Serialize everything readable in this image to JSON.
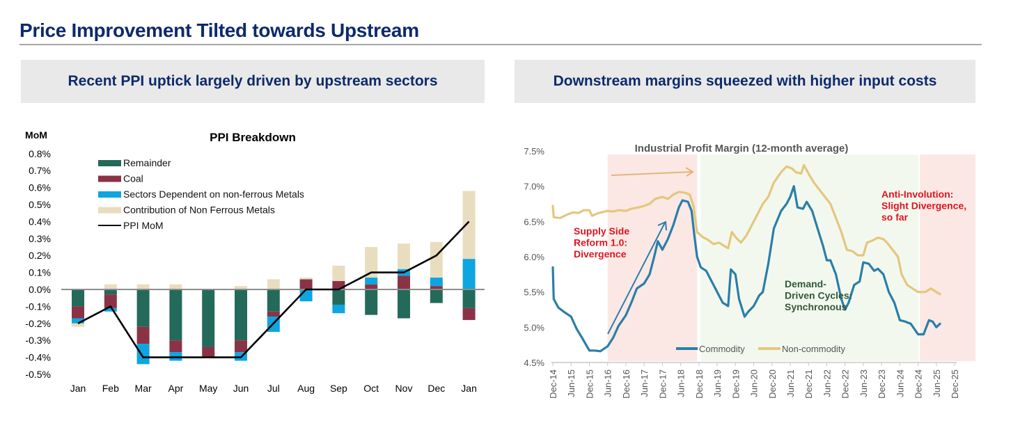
{
  "page": {
    "title": "Price Improvement Tilted towards Upstream",
    "left_subhead": "Recent PPI uptick largely driven by upstream sectors",
    "right_subhead": "Downstream margins squeezed with higher input costs"
  },
  "chart_data": [
    {
      "type": "bar",
      "stacked": true,
      "title": "PPI Breakdown",
      "ylabel": "MoM",
      "xlabel": "",
      "ylim": [
        -0.5,
        0.8
      ],
      "yticks": [
        "0.8%",
        "0.7%",
        "0.6%",
        "0.5%",
        "0.4%",
        "0.3%",
        "0.2%",
        "0.1%",
        "0.0%",
        "-0.1%",
        "-0.2%",
        "-0.3%",
        "-0.4%",
        "-0.5%"
      ],
      "categories": [
        "Jan",
        "Feb",
        "Mar",
        "Apr",
        "May",
        "Jun",
        "Jul",
        "Aug",
        "Sep",
        "Oct",
        "Nov",
        "Dec",
        "Jan"
      ],
      "legend_position": "top-left",
      "series": [
        {
          "name": "Remainder",
          "color": "#236a5a",
          "values": [
            -0.1,
            -0.03,
            -0.22,
            -0.3,
            -0.34,
            -0.3,
            -0.13,
            0.0,
            -0.09,
            -0.15,
            -0.17,
            -0.08,
            -0.11
          ]
        },
        {
          "name": "Coal",
          "color": "#8a3347",
          "values": [
            -0.07,
            -0.08,
            -0.1,
            -0.07,
            -0.06,
            -0.07,
            -0.03,
            0.06,
            0.05,
            0.03,
            0.08,
            0.02,
            -0.07
          ]
        },
        {
          "name": "Sectors Dependent on non-ferrous Metals",
          "color": "#0ea5e0",
          "values": [
            -0.03,
            -0.02,
            -0.12,
            -0.05,
            0.0,
            -0.05,
            -0.09,
            -0.07,
            -0.05,
            0.04,
            0.04,
            0.05,
            0.18
          ]
        },
        {
          "name": "Contribution of Non Ferrous Metals",
          "color": "#e8ddbe",
          "values": [
            -0.02,
            0.03,
            0.03,
            0.03,
            0.0,
            0.02,
            0.06,
            0.01,
            0.09,
            0.18,
            0.15,
            0.21,
            0.4
          ]
        }
      ],
      "line": {
        "name": "PPI MoM",
        "color": "#000000",
        "values": [
          -0.2,
          -0.1,
          -0.4,
          -0.4,
          -0.4,
          -0.4,
          -0.2,
          0.0,
          0.0,
          0.1,
          0.1,
          0.2,
          0.4
        ]
      }
    },
    {
      "type": "line",
      "title": "Industrial Profit Margin (12-month average)",
      "xlabel": "",
      "ylabel": "",
      "ylim": [
        4.5,
        7.5
      ],
      "yticks": [
        "7.5%",
        "7.0%",
        "6.5%",
        "6.0%",
        "5.5%",
        "5.0%",
        "4.5%"
      ],
      "xticks": [
        "Dec-14",
        "Jun-15",
        "Dec-15",
        "Jun-16",
        "Dec-16",
        "Jun-17",
        "Dec-17",
        "Jun-18",
        "Dec-18",
        "Jun-19",
        "Dec-19",
        "Jun-20",
        "Dec-20",
        "Jun-21",
        "Dec-21",
        "Jun-22",
        "Dec-22",
        "Jun-23",
        "Dec-23",
        "Jun-24",
        "Dec-24",
        "Jun-25",
        "Dec-25"
      ],
      "legend_position": "bottom-center",
      "x_unit": "half-years since Dec-14",
      "series": [
        {
          "name": "Commodity",
          "color": "#2a7ea8",
          "points": [
            [
              0,
              5.85
            ],
            [
              0.05,
              5.4
            ],
            [
              0.3,
              5.28
            ],
            [
              0.6,
              5.22
            ],
            [
              1,
              5.15
            ],
            [
              1.3,
              4.98
            ],
            [
              1.6,
              4.85
            ],
            [
              2,
              4.67
            ],
            [
              2.3,
              4.67
            ],
            [
              2.6,
              4.66
            ],
            [
              3,
              4.73
            ],
            [
              3.3,
              4.85
            ],
            [
              3.6,
              5.02
            ],
            [
              4,
              5.17
            ],
            [
              4.3,
              5.35
            ],
            [
              4.6,
              5.55
            ],
            [
              5,
              5.62
            ],
            [
              5.3,
              5.75
            ],
            [
              5.55,
              6.0
            ],
            [
              5.75,
              6.22
            ],
            [
              6,
              6.1
            ],
            [
              6.3,
              6.25
            ],
            [
              6.6,
              6.45
            ],
            [
              6.9,
              6.7
            ],
            [
              7.1,
              6.8
            ],
            [
              7.4,
              6.78
            ],
            [
              7.6,
              6.65
            ],
            [
              7.75,
              6.3
            ],
            [
              7.9,
              6.0
            ],
            [
              8.1,
              5.85
            ],
            [
              8.4,
              5.8
            ],
            [
              8.7,
              5.65
            ],
            [
              9,
              5.5
            ],
            [
              9.3,
              5.35
            ],
            [
              9.6,
              5.3
            ],
            [
              9.75,
              5.82
            ],
            [
              10,
              5.75
            ],
            [
              10.2,
              5.4
            ],
            [
              10.5,
              5.15
            ],
            [
              10.7,
              5.22
            ],
            [
              11,
              5.3
            ],
            [
              11.3,
              5.45
            ],
            [
              11.5,
              5.5
            ],
            [
              11.8,
              5.9
            ],
            [
              12.1,
              6.4
            ],
            [
              12.5,
              6.65
            ],
            [
              12.8,
              6.75
            ],
            [
              13,
              6.85
            ],
            [
              13.2,
              7.0
            ],
            [
              13.4,
              6.7
            ],
            [
              13.7,
              6.68
            ],
            [
              13.9,
              6.78
            ],
            [
              14.2,
              6.65
            ],
            [
              14.5,
              6.4
            ],
            [
              14.8,
              6.15
            ],
            [
              15,
              5.95
            ],
            [
              15.2,
              5.95
            ],
            [
              15.5,
              5.75
            ],
            [
              15.8,
              5.4
            ],
            [
              16,
              5.25
            ],
            [
              16.2,
              5.35
            ],
            [
              16.5,
              5.6
            ],
            [
              16.8,
              5.65
            ],
            [
              17,
              5.92
            ],
            [
              17.3,
              5.9
            ],
            [
              17.6,
              5.8
            ],
            [
              17.8,
              5.83
            ],
            [
              18.1,
              5.75
            ],
            [
              18.4,
              5.5
            ],
            [
              18.7,
              5.35
            ],
            [
              19,
              5.1
            ],
            [
              19.3,
              5.08
            ],
            [
              19.6,
              5.05
            ],
            [
              20,
              4.9
            ],
            [
              20.3,
              4.9
            ],
            [
              20.6,
              5.1
            ],
            [
              20.8,
              5.08
            ],
            [
              21,
              5.0
            ],
            [
              21.2,
              5.05
            ]
          ]
        },
        {
          "name": "Non-commodity",
          "color": "#e3c77c",
          "points": [
            [
              0,
              6.72
            ],
            [
              0.05,
              6.56
            ],
            [
              0.4,
              6.55
            ],
            [
              0.8,
              6.6
            ],
            [
              1.1,
              6.63
            ],
            [
              1.4,
              6.62
            ],
            [
              1.7,
              6.66
            ],
            [
              2,
              6.66
            ],
            [
              2.15,
              6.58
            ],
            [
              2.5,
              6.62
            ],
            [
              3,
              6.65
            ],
            [
              3.3,
              6.64
            ],
            [
              3.6,
              6.66
            ],
            [
              4,
              6.65
            ],
            [
              4.3,
              6.68
            ],
            [
              4.7,
              6.7
            ],
            [
              5,
              6.72
            ],
            [
              5.3,
              6.75
            ],
            [
              5.6,
              6.82
            ],
            [
              6,
              6.85
            ],
            [
              6.3,
              6.82
            ],
            [
              6.6,
              6.88
            ],
            [
              6.9,
              6.92
            ],
            [
              7.2,
              6.91
            ],
            [
              7.5,
              6.88
            ],
            [
              7.7,
              6.72
            ],
            [
              7.9,
              6.35
            ],
            [
              8.2,
              6.28
            ],
            [
              8.5,
              6.24
            ],
            [
              8.8,
              6.18
            ],
            [
              9.1,
              6.2
            ],
            [
              9.4,
              6.15
            ],
            [
              9.6,
              6.12
            ],
            [
              9.8,
              6.35
            ],
            [
              10,
              6.28
            ],
            [
              10.3,
              6.2
            ],
            [
              10.6,
              6.3
            ],
            [
              10.9,
              6.45
            ],
            [
              11.2,
              6.6
            ],
            [
              11.5,
              6.75
            ],
            [
              11.8,
              6.85
            ],
            [
              12.1,
              7.05
            ],
            [
              12.5,
              7.2
            ],
            [
              12.8,
              7.28
            ],
            [
              13.1,
              7.25
            ],
            [
              13.3,
              7.2
            ],
            [
              13.6,
              7.18
            ],
            [
              13.75,
              7.3
            ],
            [
              14,
              7.18
            ],
            [
              14.3,
              7.05
            ],
            [
              14.6,
              6.95
            ],
            [
              14.9,
              6.85
            ],
            [
              15.2,
              6.75
            ],
            [
              15.5,
              6.55
            ],
            [
              15.8,
              6.35
            ],
            [
              16.1,
              6.1
            ],
            [
              16.4,
              6.08
            ],
            [
              16.7,
              6.02
            ],
            [
              17,
              6.02
            ],
            [
              17.2,
              6.2
            ],
            [
              17.5,
              6.23
            ],
            [
              17.8,
              6.27
            ],
            [
              18.1,
              6.25
            ],
            [
              18.3,
              6.2
            ],
            [
              18.6,
              6.1
            ],
            [
              18.9,
              6.0
            ],
            [
              19.1,
              5.75
            ],
            [
              19.4,
              5.6
            ],
            [
              19.7,
              5.55
            ],
            [
              20,
              5.5
            ],
            [
              20.4,
              5.5
            ],
            [
              20.7,
              5.55
            ],
            [
              21,
              5.5
            ],
            [
              21.2,
              5.47
            ]
          ]
        }
      ],
      "shaded_regions": [
        {
          "from": "Jun-16",
          "to": "Dec-18",
          "color": "#fbe8e4",
          "label": "Supply Side Reform 1.0: Divergence",
          "label_color": "#e0141e"
        },
        {
          "from": "Dec-18",
          "to": "Jun-25",
          "color": "#f3f8ef",
          "label": "Demand-Driven Cycles: Synchronous",
          "label_color": "#2f5a3a"
        },
        {
          "from": "Jun-25",
          "to": "Dec-25+",
          "color": "#fbe8e4",
          "label": "Anti-Involution: Slight Divergence, so far",
          "label_color": "#e0141e"
        }
      ],
      "annotations": [
        {
          "text": "Supply Side Reform 1.0: Divergence",
          "lines": [
            "Supply Side",
            "Reform 1.0:",
            "Divergence"
          ]
        },
        {
          "text": "Demand-Driven Cycles: Synchronous",
          "lines": [
            "Demand-",
            "Driven Cycles:",
            "Synchronous"
          ]
        },
        {
          "text": "Anti-Involution: Slight Divergence, so far",
          "lines": [
            "Anti-Involution:",
            "Slight Divergence,",
            "so far"
          ]
        }
      ],
      "arrows": [
        {
          "meaning": "non-commodity margin flat (horizontal)",
          "color": "#e3b47c"
        },
        {
          "meaning": "commodity margin rising (diagonal)",
          "color": "#2a7ea8"
        }
      ]
    }
  ]
}
